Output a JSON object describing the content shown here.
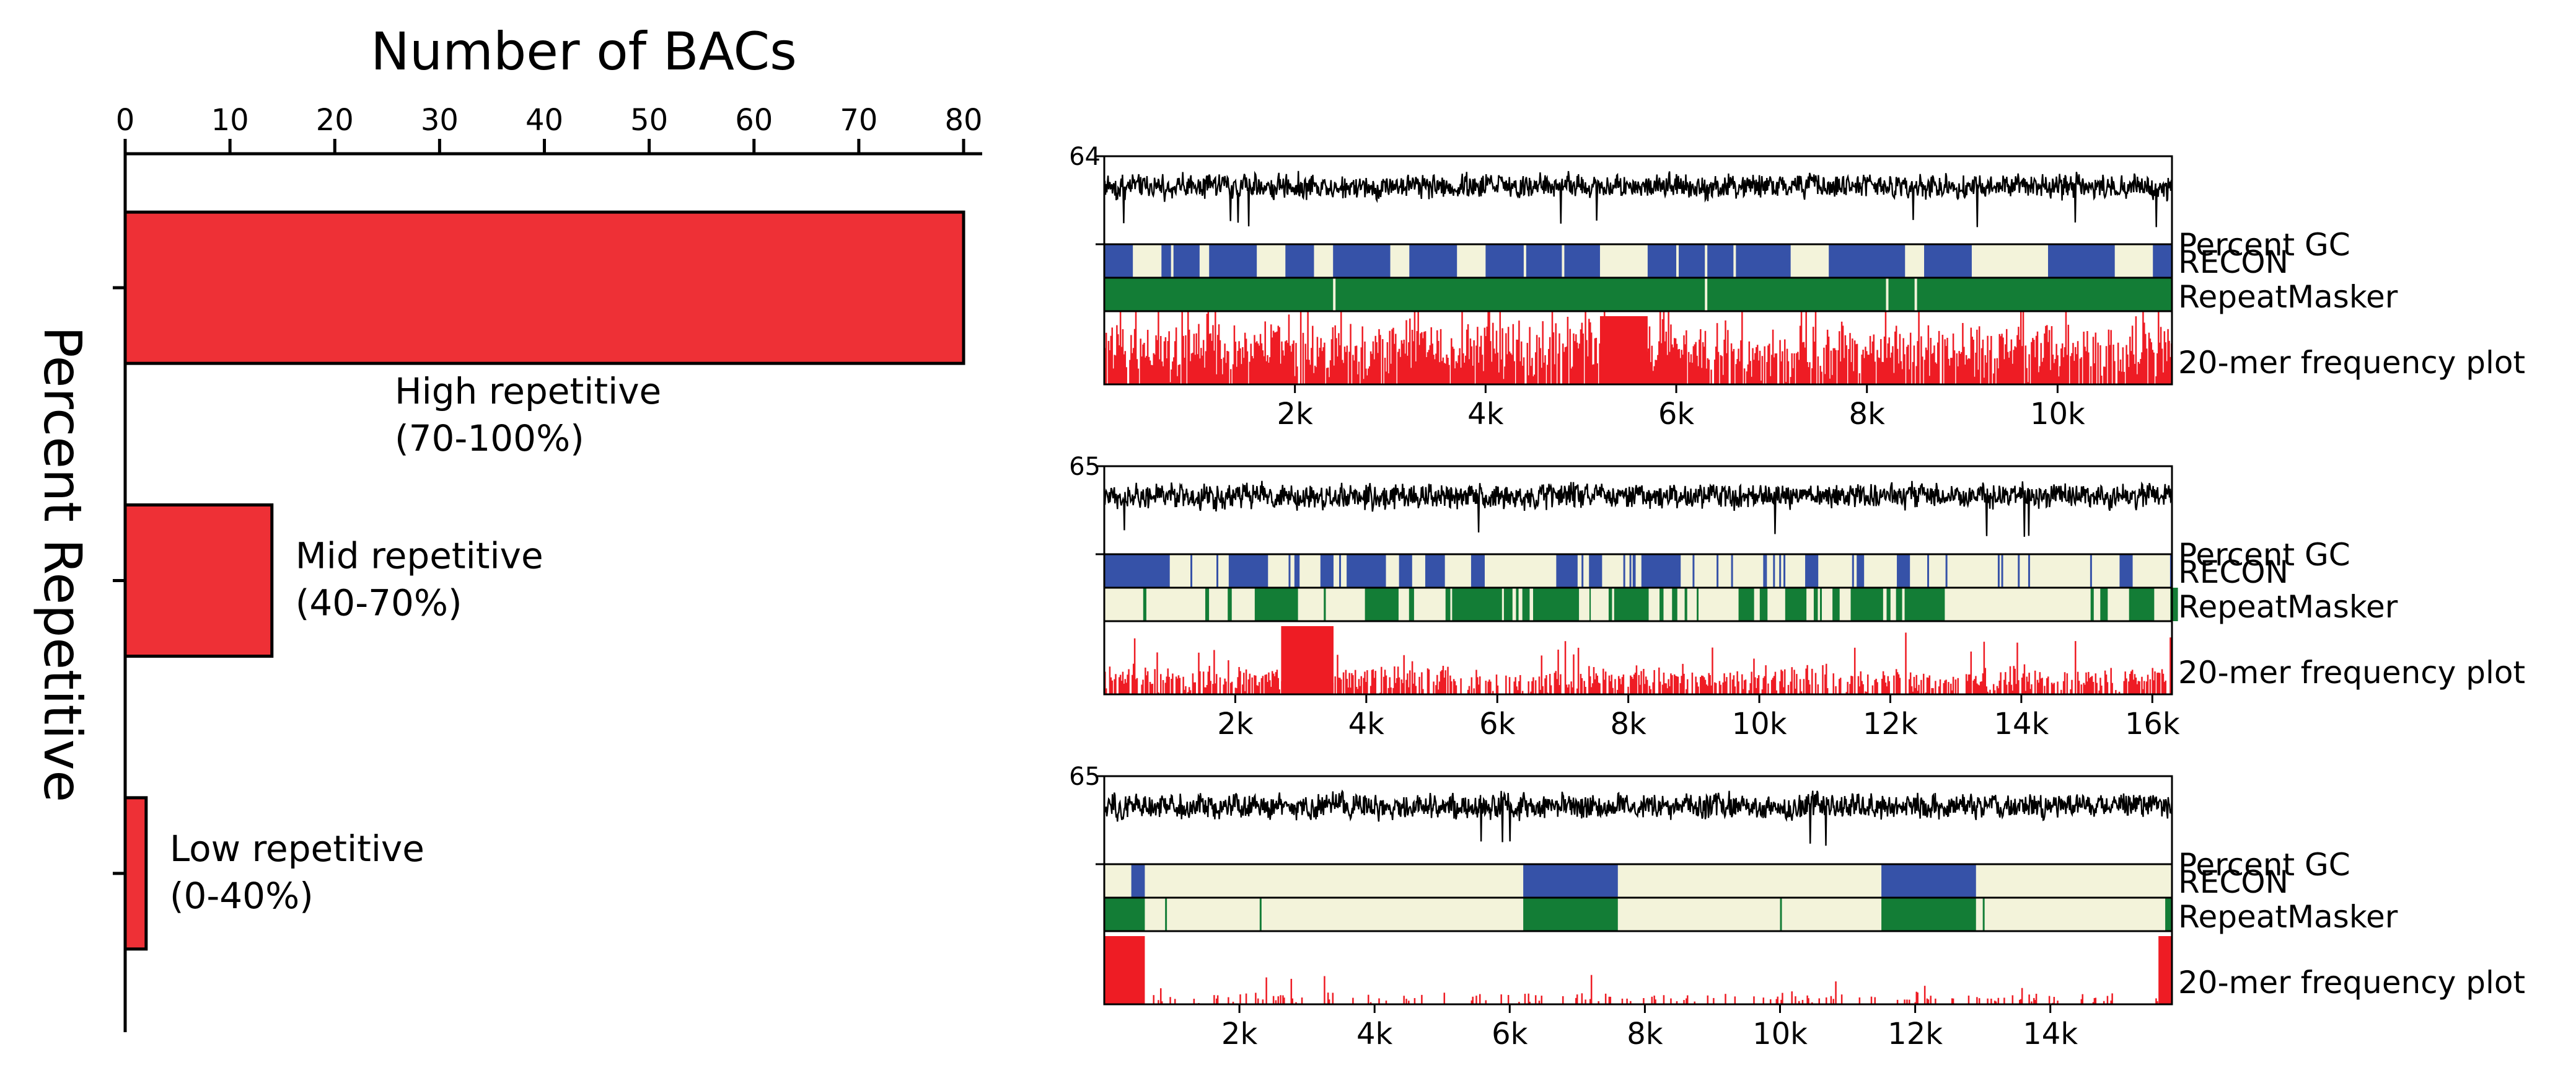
{
  "colors": {
    "bar_fill": "#ee3036",
    "gc_line": "#000000",
    "recon": "#3652a8",
    "repeatmasker": "#137d36",
    "track_bg": "#f3f3da",
    "freq": "#ee1c24"
  },
  "chart_data": [
    {
      "type": "bar",
      "orientation": "horizontal",
      "title": "Number of BACs",
      "xlabel": "Number of BACs",
      "ylabel": "Percent Repetitive",
      "xlim": [
        0,
        80
      ],
      "xticks": [
        "0",
        "10",
        "20",
        "30",
        "40",
        "50",
        "60",
        "70",
        "80"
      ],
      "categories": [
        {
          "line1": "High repetitive",
          "line2": "(70-100%)"
        },
        {
          "line1": "Mid repetitive",
          "line2": "(40-70%)"
        },
        {
          "line1": "Low repetitive",
          "line2": "(0-40%)"
        }
      ],
      "values": [
        80,
        14,
        2
      ]
    },
    {
      "type": "line",
      "panel": 1,
      "length_bp": 11200,
      "gc_ymax_label": "64",
      "xticks": [
        {
          "value": 2000,
          "label": "2k"
        },
        {
          "value": 4000,
          "label": "4k"
        },
        {
          "value": 6000,
          "label": "6k"
        },
        {
          "value": 8000,
          "label": "8k"
        },
        {
          "value": 10000,
          "label": "10k"
        }
      ],
      "tracks": [
        "Percent GC",
        "RECON",
        "RepeatMasker",
        "20-mer frequency plot"
      ],
      "recon_blue": [
        [
          0,
          300
        ],
        [
          600,
          1000
        ],
        [
          1100,
          1600
        ],
        [
          1900,
          2200
        ],
        [
          2400,
          3000
        ],
        [
          3200,
          3700
        ],
        [
          4000,
          5200
        ],
        [
          5700,
          7200
        ],
        [
          7600,
          8400
        ],
        [
          8600,
          9100
        ],
        [
          9900,
          10600
        ],
        [
          11000,
          11200
        ]
      ],
      "recon_white": [
        [
          700,
          720
        ],
        [
          4400,
          4420
        ],
        [
          4800,
          4820
        ],
        [
          6000,
          6020
        ],
        [
          6300,
          6330
        ],
        [
          6600,
          6620
        ]
      ],
      "repeatmasker_white": [
        [
          2400,
          2420
        ],
        [
          6300,
          6330
        ],
        [
          8200,
          8220
        ],
        [
          8500,
          8520
        ]
      ],
      "freq_block": [
        5200,
        5700
      ],
      "freq_profile": {
        "density": 0.9,
        "base": 0.55,
        "spread": 0.8
      }
    },
    {
      "type": "line",
      "panel": 2,
      "length_bp": 16300,
      "gc_ymax_label": "65",
      "xticks": [
        {
          "value": 2000,
          "label": "2k"
        },
        {
          "value": 4000,
          "label": "4k"
        },
        {
          "value": 6000,
          "label": "6k"
        },
        {
          "value": 8000,
          "label": "8k"
        },
        {
          "value": 10000,
          "label": "10k"
        },
        {
          "value": 12000,
          "label": "12k"
        },
        {
          "value": 14000,
          "label": "14k"
        },
        {
          "value": 16000,
          "label": "16k"
        }
      ],
      "tracks": [
        "Percent GC",
        "RECON",
        "RepeatMasker",
        "20-mer frequency plot"
      ],
      "recon_blue": [
        [
          0,
          1000
        ],
        [
          1900,
          2500
        ],
        [
          3300,
          3500
        ],
        [
          3700,
          4300
        ],
        [
          4500,
          4700
        ],
        [
          4900,
          5200
        ],
        [
          5600,
          5800
        ],
        [
          6900,
          7200
        ],
        [
          7400,
          7600
        ],
        [
          8200,
          8800
        ],
        [
          10700,
          10900
        ],
        [
          11500,
          11600
        ],
        [
          12100,
          12300
        ],
        [
          15500,
          15700
        ]
      ],
      "recon_white": [],
      "repeatmasker_white": [],
      "repeatmasker_pattern": "striped",
      "freq_block": [
        2700,
        3500
      ],
      "freq_profile": {
        "density": 0.65,
        "base": 0.2,
        "spread": 0.45
      }
    },
    {
      "type": "line",
      "panel": 3,
      "length_bp": 15800,
      "gc_ymax_label": "65",
      "xticks": [
        {
          "value": 2000,
          "label": "2k"
        },
        {
          "value": 4000,
          "label": "4k"
        },
        {
          "value": 6000,
          "label": "6k"
        },
        {
          "value": 8000,
          "label": "8k"
        },
        {
          "value": 10000,
          "label": "10k"
        },
        {
          "value": 12000,
          "label": "12k"
        },
        {
          "value": 14000,
          "label": "14k"
        }
      ],
      "tracks": [
        "Percent GC",
        "RECON",
        "RepeatMasker",
        "20-mer frequency plot"
      ],
      "recon_blue": [
        [
          400,
          600
        ],
        [
          6200,
          7600
        ],
        [
          11500,
          12900
        ]
      ],
      "recon_white": [],
      "repeatmasker_green": [
        [
          0,
          600
        ],
        [
          6200,
          7600
        ],
        [
          11500,
          12900
        ],
        [
          15700,
          15800
        ]
      ],
      "freq_block": [
        0,
        600
      ],
      "freq_block_end": [
        15600,
        15800
      ],
      "freq_profile": {
        "density": 0.18,
        "base": 0.05,
        "spread": 0.25
      }
    }
  ]
}
